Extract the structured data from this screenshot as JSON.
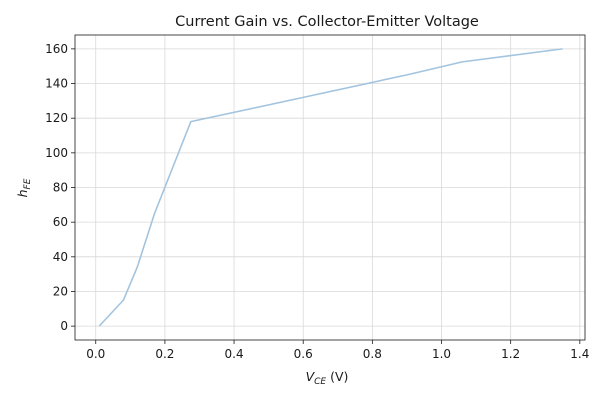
{
  "chart_data": {
    "type": "line",
    "title": "Current Gain vs. Collector-Emitter Voltage",
    "xlabel": {
      "base": "V",
      "sub": "CE",
      "unit": " (V)"
    },
    "ylabel": {
      "base": "h",
      "sub": "FE"
    },
    "xlim": [
      -0.06,
      1.415
    ],
    "ylim": [
      -8,
      168
    ],
    "xticks": [
      0.0,
      0.2,
      0.4,
      0.6,
      0.8,
      1.0,
      1.2,
      1.4
    ],
    "xtick_labels": [
      "0.0",
      "0.2",
      "0.4",
      "0.6",
      "0.8",
      "1.0",
      "1.2",
      "1.4"
    ],
    "yticks": [
      0,
      20,
      40,
      60,
      80,
      100,
      120,
      140,
      160
    ],
    "ytick_labels": [
      "0",
      "20",
      "40",
      "60",
      "80",
      "100",
      "120",
      "140",
      "160"
    ],
    "grid": true,
    "series": [
      {
        "color": "#a3c4df",
        "x": [
          0.01,
          0.08,
          0.12,
          0.17,
          0.275,
          0.6,
          0.9,
          1.06,
          1.35
        ],
        "y": [
          0,
          15,
          34,
          65,
          118,
          132,
          145,
          152.5,
          160
        ]
      }
    ]
  }
}
